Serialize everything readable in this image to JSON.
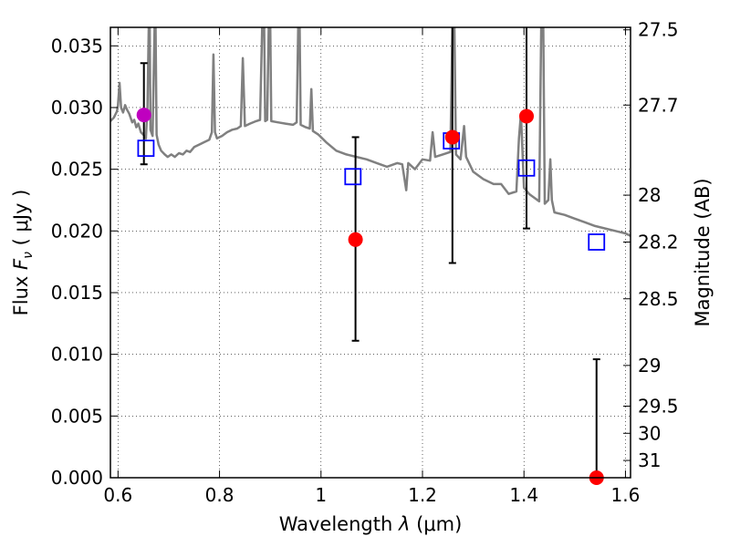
{
  "chart_data": {
    "type": "scatter",
    "xlabel_prefix": "Wavelength",
    "xlabel_symbol": "λ",
    "xlabel_units": "(μm)",
    "ylabel_prefix": "Flux",
    "ylabel_symbol": "F",
    "ylabel_subscript": "ν",
    "ylabel_units": "( μJy )",
    "y2label": "Magnitude (AB)",
    "xlim": [
      0.585,
      1.61
    ],
    "ylim": [
      0.0,
      0.0365
    ],
    "grid": true,
    "x_ticks": [
      0.6,
      0.8,
      1.0,
      1.2,
      1.4,
      1.6
    ],
    "x_tick_labels": [
      "0.6",
      "0.8",
      "1",
      "1.2",
      "1.4",
      "1.6"
    ],
    "y_ticks": [
      0.0,
      0.005,
      0.01,
      0.015,
      0.02,
      0.025,
      0.03,
      0.035
    ],
    "y_tick_labels": [
      "0.000",
      "0.005",
      "0.010",
      "0.015",
      "0.020",
      "0.025",
      "0.030",
      "0.035"
    ],
    "y2_ticks": [
      {
        "flux": 0.0363,
        "label": "27.5"
      },
      {
        "flux": 0.0302,
        "label": "27.7"
      },
      {
        "flux": 0.0229,
        "label": "28"
      },
      {
        "flux": 0.0191,
        "label": "28.2"
      },
      {
        "flux": 0.0145,
        "label": "28.5"
      },
      {
        "flux": 0.0091,
        "label": "29"
      },
      {
        "flux": 0.0058,
        "label": "29.5"
      },
      {
        "flux": 0.0036,
        "label": "30"
      },
      {
        "flux": 0.0014,
        "label": "31"
      }
    ],
    "spectrum": {
      "color": "#808080",
      "points": [
        [
          0.585,
          0.0289
        ],
        [
          0.592,
          0.0292
        ],
        [
          0.598,
          0.0297
        ],
        [
          0.6,
          0.0302
        ],
        [
          0.603,
          0.032
        ],
        [
          0.606,
          0.03
        ],
        [
          0.61,
          0.0296
        ],
        [
          0.614,
          0.0302
        ],
        [
          0.618,
          0.0298
        ],
        [
          0.622,
          0.0295
        ],
        [
          0.628,
          0.0288
        ],
        [
          0.632,
          0.029
        ],
        [
          0.636,
          0.0284
        ],
        [
          0.64,
          0.0287
        ],
        [
          0.645,
          0.028
        ],
        [
          0.65,
          0.0278
        ],
        [
          0.655,
          0.0275
        ],
        [
          0.658,
          0.03
        ],
        [
          0.6605,
          0.0365
        ],
        [
          0.6625,
          0.0365
        ],
        [
          0.664,
          0.0282
        ],
        [
          0.668,
          0.0277
        ],
        [
          0.672,
          0.0365
        ],
        [
          0.674,
          0.0365
        ],
        [
          0.676,
          0.0278
        ],
        [
          0.68,
          0.027
        ],
        [
          0.685,
          0.0265
        ],
        [
          0.692,
          0.0262
        ],
        [
          0.698,
          0.026
        ],
        [
          0.705,
          0.0262
        ],
        [
          0.712,
          0.026
        ],
        [
          0.72,
          0.0263
        ],
        [
          0.728,
          0.0262
        ],
        [
          0.735,
          0.0265
        ],
        [
          0.742,
          0.0264
        ],
        [
          0.75,
          0.0268
        ],
        [
          0.76,
          0.027
        ],
        [
          0.77,
          0.0272
        ],
        [
          0.78,
          0.0274
        ],
        [
          0.785,
          0.028
        ],
        [
          0.788,
          0.0343
        ],
        [
          0.791,
          0.028
        ],
        [
          0.795,
          0.0275
        ],
        [
          0.805,
          0.0277
        ],
        [
          0.815,
          0.028
        ],
        [
          0.825,
          0.0282
        ],
        [
          0.835,
          0.0283
        ],
        [
          0.842,
          0.0285
        ],
        [
          0.846,
          0.034
        ],
        [
          0.85,
          0.0285
        ],
        [
          0.86,
          0.0287
        ],
        [
          0.872,
          0.0289
        ],
        [
          0.88,
          0.029
        ],
        [
          0.884,
          0.0365
        ],
        [
          0.888,
          0.0365
        ],
        [
          0.89,
          0.0289
        ],
        [
          0.894,
          0.029
        ],
        [
          0.897,
          0.0365
        ],
        [
          0.9,
          0.0365
        ],
        [
          0.902,
          0.0289
        ],
        [
          0.915,
          0.0288
        ],
        [
          0.93,
          0.0287
        ],
        [
          0.945,
          0.0286
        ],
        [
          0.952,
          0.0288
        ],
        [
          0.955,
          0.0365
        ],
        [
          0.958,
          0.0365
        ],
        [
          0.96,
          0.0286
        ],
        [
          0.97,
          0.0284
        ],
        [
          0.978,
          0.0283
        ],
        [
          0.981,
          0.0315
        ],
        [
          0.984,
          0.0281
        ],
        [
          0.995,
          0.0278
        ],
        [
          1.01,
          0.0272
        ],
        [
          1.03,
          0.0265
        ],
        [
          1.05,
          0.0262
        ],
        [
          1.07,
          0.026
        ],
        [
          1.09,
          0.0258
        ],
        [
          1.11,
          0.0255
        ],
        [
          1.13,
          0.0252
        ],
        [
          1.15,
          0.0255
        ],
        [
          1.16,
          0.0254
        ],
        [
          1.168,
          0.0233
        ],
        [
          1.172,
          0.0255
        ],
        [
          1.185,
          0.025
        ],
        [
          1.2,
          0.0258
        ],
        [
          1.215,
          0.0257
        ],
        [
          1.22,
          0.028
        ],
        [
          1.225,
          0.026
        ],
        [
          1.24,
          0.0262
        ],
        [
          1.255,
          0.0264
        ],
        [
          1.259,
          0.0365
        ],
        [
          1.263,
          0.0365
        ],
        [
          1.266,
          0.0262
        ],
        [
          1.275,
          0.0258
        ],
        [
          1.282,
          0.0285
        ],
        [
          1.286,
          0.026
        ],
        [
          1.3,
          0.0248
        ],
        [
          1.32,
          0.0242
        ],
        [
          1.34,
          0.0238
        ],
        [
          1.355,
          0.0238
        ],
        [
          1.37,
          0.023
        ],
        [
          1.385,
          0.0232
        ],
        [
          1.39,
          0.0275
        ],
        [
          1.394,
          0.0295
        ],
        [
          1.4,
          0.0235
        ],
        [
          1.41,
          0.023
        ],
        [
          1.42,
          0.0227
        ],
        [
          1.43,
          0.0224
        ],
        [
          1.434,
          0.0365
        ],
        [
          1.438,
          0.0365
        ],
        [
          1.441,
          0.0222
        ],
        [
          1.448,
          0.0225
        ],
        [
          1.452,
          0.0258
        ],
        [
          1.455,
          0.0225
        ],
        [
          1.46,
          0.0215
        ],
        [
          1.48,
          0.0213
        ],
        [
          1.5,
          0.021
        ],
        [
          1.52,
          0.0207
        ],
        [
          1.54,
          0.0204
        ],
        [
          1.56,
          0.0202
        ],
        [
          1.58,
          0.02
        ],
        [
          1.6,
          0.0198
        ],
        [
          1.61,
          0.0196
        ]
      ]
    },
    "model_points": {
      "color": "#0000ff",
      "marker": "open-square",
      "points": [
        [
          0.655,
          0.0267
        ],
        [
          1.063,
          0.0244
        ],
        [
          1.257,
          0.0273
        ],
        [
          1.405,
          0.0251
        ],
        [
          1.543,
          0.0191
        ]
      ]
    },
    "observed_points": {
      "color": "#ff0000",
      "marker": "filled-circle",
      "points": [
        {
          "x": 0.651,
          "y": 0.0294,
          "err_low": 0.0254,
          "err_high": 0.0336,
          "color": "#bf00bf"
        },
        {
          "x": 1.068,
          "y": 0.0193,
          "err_low": 0.0111,
          "err_high": 0.0276,
          "color": "#ff0000"
        },
        {
          "x": 1.259,
          "y": 0.0276,
          "err_low": 0.0174,
          "err_high": 0.0365,
          "color": "#ff0000"
        },
        {
          "x": 1.405,
          "y": 0.0293,
          "err_low": 0.0202,
          "err_high": 0.0365,
          "color": "#ff0000"
        },
        {
          "x": 1.543,
          "y": 0.0,
          "err_low": 0.0,
          "err_high": 0.0096,
          "color": "#ff0000"
        }
      ]
    }
  }
}
